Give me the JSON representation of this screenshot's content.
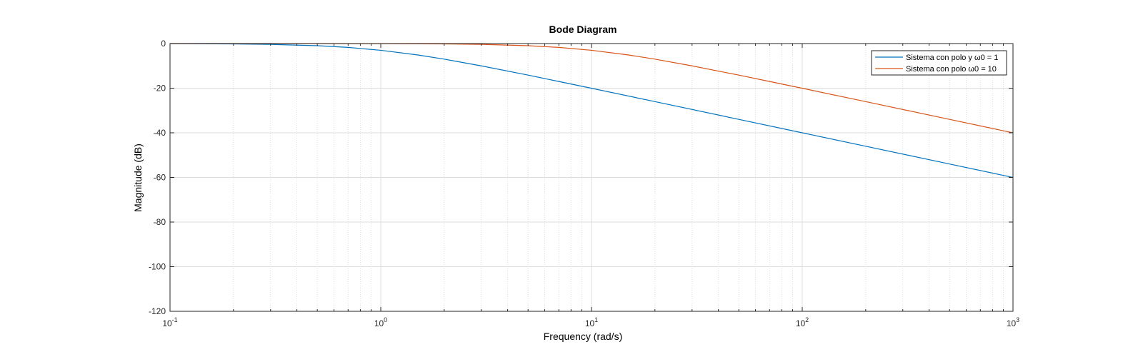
{
  "chart_data": {
    "type": "line",
    "title": "Bode Diagram",
    "xlabel": "Frequency  (rad/s)",
    "ylabel": "Magnitude (dB)",
    "xscale": "log",
    "xlim": [
      0.1,
      1000
    ],
    "ylim": [
      -120,
      0
    ],
    "yticks": [
      0,
      -20,
      -40,
      -60,
      -80,
      -100,
      -120
    ],
    "xticks": [
      {
        "value": 0.1,
        "base": "10",
        "exp": "-1"
      },
      {
        "value": 1,
        "base": "10",
        "exp": "0"
      },
      {
        "value": 10,
        "base": "10",
        "exp": "1"
      },
      {
        "value": 100,
        "base": "10",
        "exp": "2"
      },
      {
        "value": 1000,
        "base": "10",
        "exp": "3"
      }
    ],
    "grid": true,
    "minor_grid": true,
    "legend_position": "top-right",
    "series": [
      {
        "name": "Sistema con polo y ω0 = 1",
        "color": "#0072BD",
        "x": [
          0.1,
          0.2,
          0.3,
          0.5,
          0.7,
          1,
          1.5,
          2,
          3,
          5,
          7,
          10,
          20,
          50,
          100,
          200,
          500,
          1000
        ],
        "y": [
          -0.04,
          -0.17,
          -0.37,
          -0.97,
          -1.73,
          -3.01,
          -5.12,
          -6.99,
          -10.0,
          -14.15,
          -17.0,
          -20.04,
          -26.02,
          -33.98,
          -40.0,
          -46.02,
          -53.98,
          -60.0
        ]
      },
      {
        "name": "Sistema con polo ω0 = 10",
        "color": "#D95319",
        "x": [
          0.1,
          0.5,
          1,
          2,
          3,
          5,
          7,
          10,
          15,
          20,
          30,
          50,
          70,
          100,
          200,
          500,
          1000
        ],
        "y": [
          0.0,
          -0.01,
          -0.04,
          -0.17,
          -0.37,
          -0.97,
          -1.73,
          -3.01,
          -5.12,
          -6.99,
          -10.0,
          -14.15,
          -17.0,
          -20.04,
          -26.02,
          -33.98,
          -40.0
        ]
      }
    ]
  }
}
